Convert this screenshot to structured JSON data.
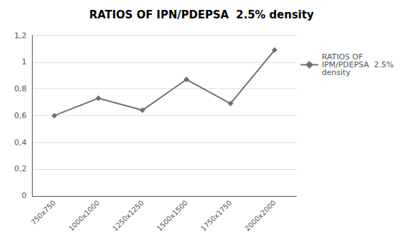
{
  "chart_data": {
    "type": "line",
    "title": "RATIOS OF IPN/PDEPSA  2.5% density",
    "categories": [
      "750x750",
      "1000x1000",
      "1250x1250",
      "1500x1500",
      "1750x1750",
      "2000x2000"
    ],
    "series": [
      {
        "name": "RATIOS OF\nIPM/PDEPSA  2.5%\ndensity",
        "color": "#707070",
        "marker": "diamond",
        "values": [
          0.6,
          0.73,
          0.64,
          0.87,
          0.69,
          1.09
        ]
      }
    ],
    "ylim": [
      0,
      1.2
    ],
    "yticks": [
      0,
      {
        "value": 0.2,
        "label": "0,2"
      },
      {
        "value": 0.4,
        "label": "0,4"
      },
      {
        "value": 0.6,
        "label": "0,6"
      },
      {
        "value": 0.8,
        "label": "0,8"
      },
      1,
      {
        "value": 1.2,
        "label": "1,2"
      }
    ],
    "grid": true,
    "legend": "right"
  }
}
